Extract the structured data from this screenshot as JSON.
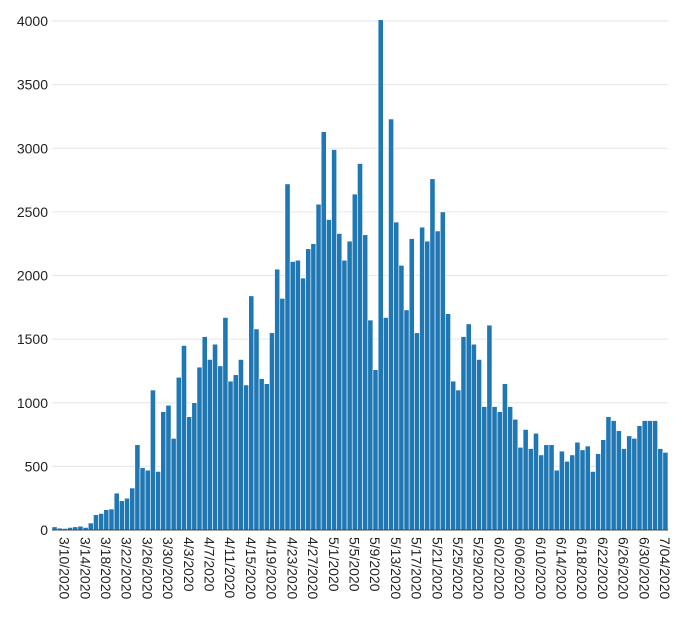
{
  "chart_data": {
    "type": "bar",
    "title": "",
    "xlabel": "",
    "ylabel": "",
    "ylim": [
      0,
      4000
    ],
    "yticks": [
      0,
      500,
      1000,
      1500,
      2000,
      2500,
      3000,
      3500,
      4000
    ],
    "xtick_labels": [
      "3/10/2020",
      "3/14/2020",
      "3/18/2020",
      "3/22/2020",
      "3/26/2020",
      "3/30/2020",
      "4/3/2020",
      "4/7/2020",
      "4/11/2020",
      "4/15/2020",
      "4/19/2020",
      "4/23/2020",
      "4/27/2020",
      "5/1/2020",
      "5/5/2020",
      "5/9/2020",
      "5/13/2020",
      "5/17/2020",
      "5/21/2020",
      "5/25/2020",
      "5/29/2020",
      "6/02/2020",
      "6/06/2020",
      "6/10/2020",
      "6/14/2020",
      "6/18/2020",
      "6/22/2020",
      "6/26/2020",
      "6/30/2020",
      "7/04/2020"
    ],
    "grid": true,
    "bar_color": "#1f77b4",
    "values": [
      25,
      15,
      12,
      20,
      25,
      30,
      20,
      55,
      120,
      130,
      160,
      165,
      290,
      230,
      250,
      330,
      670,
      490,
      470,
      1100,
      460,
      930,
      980,
      720,
      1200,
      1450,
      890,
      1000,
      1280,
      1520,
      1340,
      1460,
      1290,
      1670,
      1170,
      1220,
      1340,
      1140,
      1840,
      1580,
      1190,
      1150,
      1550,
      2050,
      1820,
      2720,
      2110,
      2120,
      1980,
      2210,
      2250,
      2560,
      3130,
      2440,
      2990,
      2330,
      2120,
      2270,
      2640,
      2880,
      2320,
      1650,
      1260,
      4010,
      1670,
      3230,
      2420,
      2080,
      1730,
      2290,
      1550,
      2380,
      2270,
      2760,
      2350,
      2500,
      1700,
      1170,
      1100,
      1520,
      1620,
      1460,
      1340,
      970,
      1610,
      970,
      930,
      1150,
      970,
      870,
      650,
      790,
      640,
      760,
      590,
      670,
      670,
      470,
      620,
      540,
      590,
      690,
      630,
      660,
      460,
      600,
      710,
      890,
      860,
      780,
      640,
      740,
      720,
      820,
      860,
      860,
      860,
      640,
      610
    ]
  }
}
